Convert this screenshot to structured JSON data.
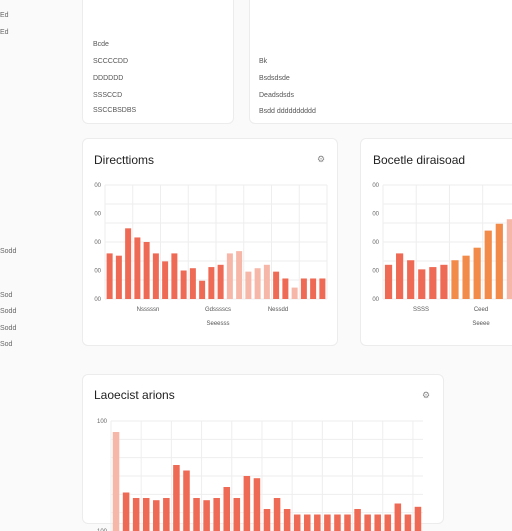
{
  "sidebar": {
    "items": [
      "Ed",
      "Ed",
      "Sodd",
      "Sod",
      "Sodd",
      "Sodd",
      "Sod"
    ]
  },
  "stats_left": {
    "lines": [
      "Bcde",
      "SCCCCDD",
      "DDDDDD",
      "SSSCCD",
      "SSCCBSDBS"
    ]
  },
  "stats_right": {
    "lines": [
      "Bk",
      "Bsdsdsde",
      "Deadsdsds",
      "Bsdd dddddddddd"
    ]
  },
  "colors": {
    "accent": "#ef6a55",
    "accent_light": "#f6b7a9",
    "accent_orange": "#f28a4a",
    "grid": "#eeeeee"
  },
  "charts": {
    "c1": {
      "title": "Directtioms",
      "icon": "settings-icon",
      "icon_glyph": "⚙",
      "y_ticks": [
        "00",
        "00",
        "00",
        "00",
        "00"
      ],
      "x_labels": [
        "Nsssssn",
        "Gdsssscs",
        "Nessdd"
      ],
      "x_labels2": [
        "Seeesss"
      ],
      "chart_data": {
        "type": "bar",
        "values": [
          40,
          38,
          62,
          54,
          50,
          40,
          33,
          40,
          25,
          27,
          16,
          28,
          30,
          40,
          42,
          24,
          27,
          30,
          24,
          18,
          10,
          18,
          18,
          18
        ],
        "light": [
          false,
          false,
          false,
          false,
          false,
          false,
          false,
          false,
          false,
          false,
          false,
          false,
          false,
          true,
          true,
          true,
          true,
          true,
          false,
          false,
          true,
          false,
          false,
          false
        ],
        "ylim": [
          0,
          100
        ]
      }
    },
    "c2": {
      "title": "Bocetle diraisoad",
      "y_ticks": [
        "00",
        "00",
        "00",
        "00",
        "00"
      ],
      "x_labels": [
        "SSSS",
        "Ceed"
      ],
      "x_labels2": [
        "Seeee"
      ],
      "chart_data": {
        "type": "bar",
        "values": [
          30,
          40,
          34,
          26,
          28,
          30,
          34,
          38,
          45,
          60,
          66,
          70,
          78
        ],
        "light": [
          false,
          false,
          false,
          false,
          false,
          false,
          false,
          false,
          false,
          false,
          false,
          true,
          true
        ],
        "ylim": [
          0,
          100
        ]
      }
    },
    "c3": {
      "title": "Laoecist arions",
      "icon": "settings-icon",
      "icon_glyph": "⚙",
      "y_ticks": [
        "100",
        "100"
      ],
      "chart_data": {
        "type": "bar",
        "values": [
          90,
          35,
          30,
          30,
          28,
          30,
          60,
          55,
          30,
          28,
          30,
          40,
          30,
          50,
          48,
          20,
          30,
          20,
          15,
          15,
          15,
          15,
          15,
          15,
          20,
          15,
          15,
          15,
          25,
          15,
          22
        ],
        "light": [
          true,
          false,
          false,
          false,
          false,
          false,
          false,
          false,
          false,
          false,
          false,
          false,
          false,
          false,
          false,
          false,
          false,
          false,
          false,
          false,
          false,
          false,
          false,
          false,
          false,
          false,
          false,
          false,
          false,
          false,
          false
        ],
        "ylim": [
          0,
          100
        ]
      }
    }
  }
}
